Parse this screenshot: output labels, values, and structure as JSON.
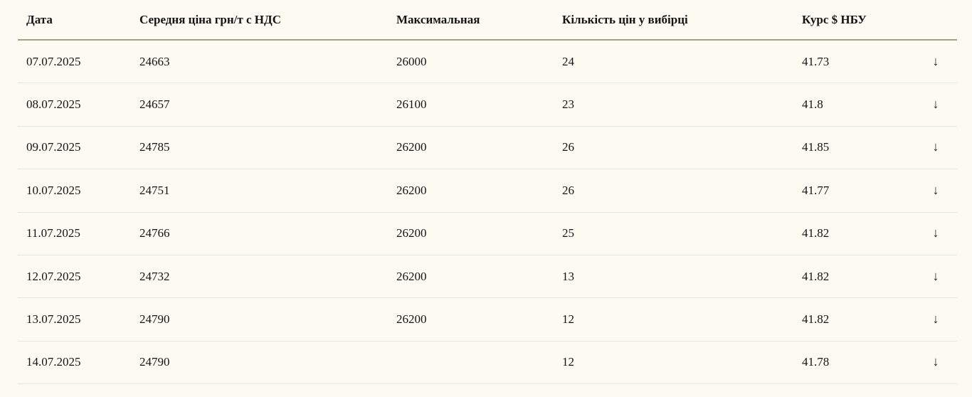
{
  "table": {
    "columns": [
      {
        "key": "date",
        "label": "Дата"
      },
      {
        "key": "avg_price",
        "label": "Середня ціна грн/т с НДС"
      },
      {
        "key": "max_price",
        "label": "Максимальная"
      },
      {
        "key": "sample_count",
        "label": "Кількість цін у вибірці"
      },
      {
        "key": "usd_rate",
        "label": "Курс $ НБУ"
      },
      {
        "key": "trend",
        "label": ""
      }
    ],
    "rows": [
      {
        "date": "07.07.2025",
        "avg_price": "24663",
        "max_price": "26000",
        "sample_count": "24",
        "usd_rate": "41.73",
        "trend": "down"
      },
      {
        "date": "08.07.2025",
        "avg_price": "24657",
        "max_price": "26100",
        "sample_count": "23",
        "usd_rate": "41.8",
        "trend": "down"
      },
      {
        "date": "09.07.2025",
        "avg_price": "24785",
        "max_price": "26200",
        "sample_count": "26",
        "usd_rate": "41.85",
        "trend": "down"
      },
      {
        "date": "10.07.2025",
        "avg_price": "24751",
        "max_price": "26200",
        "sample_count": "26",
        "usd_rate": "41.77",
        "trend": "down"
      },
      {
        "date": "11.07.2025",
        "avg_price": "24766",
        "max_price": "26200",
        "sample_count": "25",
        "usd_rate": "41.82",
        "trend": "down"
      },
      {
        "date": "12.07.2025",
        "avg_price": "24732",
        "max_price": "26200",
        "sample_count": "13",
        "usd_rate": "41.82",
        "trend": "down"
      },
      {
        "date": "13.07.2025",
        "avg_price": "24790",
        "max_price": "26200",
        "sample_count": "12",
        "usd_rate": "41.82",
        "trend": "down"
      },
      {
        "date": "14.07.2025",
        "avg_price": "24790",
        "max_price": "",
        "sample_count": "12",
        "usd_rate": "41.78",
        "trend": "down"
      }
    ]
  },
  "icons": {
    "down_arrow": "↓"
  },
  "colors": {
    "background": "#fdfaf3",
    "text": "#141414",
    "header_rule": "#a3a18b",
    "row_rule": "#eae6dc"
  }
}
